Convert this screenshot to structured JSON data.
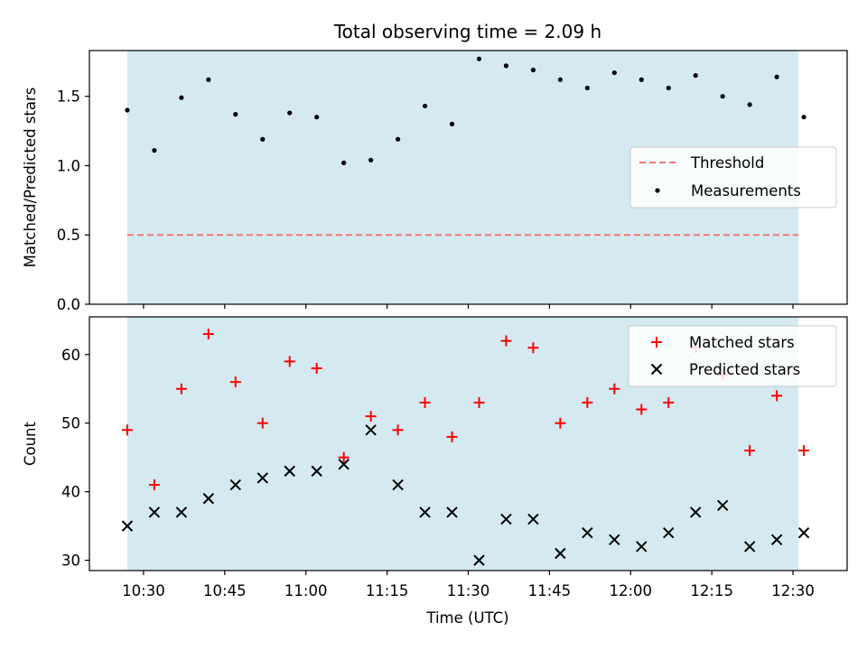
{
  "title": "Total observing time = 2.09 h",
  "colors": {
    "shade": "#d4eaf0",
    "threshold": "#f07878",
    "matched": "#ff0000",
    "predicted": "#000000",
    "measurement": "#000000"
  },
  "chart_data": [
    {
      "type": "scatter",
      "ylabel": "Matched/Predicted stars",
      "ylim": [
        0,
        1.83
      ],
      "yticks": [
        {
          "value": 0.0,
          "label": "0.0"
        },
        {
          "value": 0.5,
          "label": "0.5"
        },
        {
          "value": 1.0,
          "label": "1.0"
        },
        {
          "value": 1.5,
          "label": "1.5"
        }
      ],
      "legend": {
        "position": "right",
        "entries": [
          "Threshold",
          "Measurements"
        ]
      },
      "threshold": {
        "name": "Threshold",
        "y": 0.5,
        "x_range": [
          "10:27",
          "12:31"
        ]
      },
      "series": [
        {
          "name": "Measurements",
          "x": [
            "10:27",
            "10:32",
            "10:37",
            "10:42",
            "10:47",
            "10:52",
            "10:57",
            "11:02",
            "11:07",
            "11:12",
            "11:17",
            "11:22",
            "11:27",
            "11:32",
            "11:37",
            "11:42",
            "11:47",
            "11:52",
            "11:57",
            "12:02",
            "12:07",
            "12:12",
            "12:17",
            "12:22",
            "12:27",
            "12:32"
          ],
          "y": [
            1.4,
            1.11,
            1.49,
            1.62,
            1.37,
            1.19,
            1.38,
            1.35,
            1.02,
            1.04,
            1.19,
            1.43,
            1.3,
            1.77,
            1.72,
            1.69,
            1.62,
            1.56,
            1.67,
            1.62,
            1.56,
            1.65,
            1.5,
            1.44,
            1.64,
            1.35
          ]
        }
      ]
    },
    {
      "type": "scatter",
      "xlabel": "Time (UTC)",
      "ylabel": "Count",
      "ylim": [
        28.5,
        65.5
      ],
      "yticks": [
        {
          "value": 30,
          "label": "30"
        },
        {
          "value": 40,
          "label": "40"
        },
        {
          "value": 50,
          "label": "50"
        },
        {
          "value": 60,
          "label": "60"
        }
      ],
      "legend": {
        "position": "top-right",
        "entries": [
          "Matched stars",
          "Predicted stars"
        ]
      },
      "series": [
        {
          "name": "Matched stars",
          "x": [
            "10:27",
            "10:32",
            "10:37",
            "10:42",
            "10:47",
            "10:52",
            "10:57",
            "11:02",
            "11:07",
            "11:12",
            "11:17",
            "11:22",
            "11:27",
            "11:32",
            "11:37",
            "11:42",
            "11:47",
            "11:52",
            "11:57",
            "12:02",
            "12:07",
            "12:12",
            "12:17",
            "12:22",
            "12:27",
            "12:32"
          ],
          "y": [
            49,
            41,
            55,
            63,
            56,
            50,
            59,
            58,
            45,
            51,
            49,
            53,
            48,
            53,
            62,
            61,
            50,
            53,
            55,
            52,
            53,
            61,
            57,
            46,
            54,
            46
          ]
        },
        {
          "name": "Predicted stars",
          "x": [
            "10:27",
            "10:32",
            "10:37",
            "10:42",
            "10:47",
            "10:52",
            "10:57",
            "11:02",
            "11:07",
            "11:12",
            "11:17",
            "11:22",
            "11:27",
            "11:32",
            "11:37",
            "11:42",
            "11:47",
            "11:52",
            "11:57",
            "12:02",
            "12:07",
            "12:12",
            "12:17",
            "12:22",
            "12:27",
            "12:32"
          ],
          "y": [
            35,
            37,
            37,
            39,
            41,
            42,
            43,
            43,
            44,
            49,
            41,
            37,
            37,
            30,
            36,
            36,
            31,
            34,
            33,
            32,
            34,
            37,
            38,
            32,
            33,
            34
          ]
        }
      ]
    }
  ],
  "x_axis": {
    "xlim": [
      "10:20",
      "12:40"
    ],
    "shade_range": [
      "10:27",
      "12:31"
    ],
    "ticks": [
      {
        "value": "10:30",
        "label": "10:30"
      },
      {
        "value": "10:45",
        "label": "10:45"
      },
      {
        "value": "11:00",
        "label": "11:00"
      },
      {
        "value": "11:15",
        "label": "11:15"
      },
      {
        "value": "11:30",
        "label": "11:30"
      },
      {
        "value": "11:45",
        "label": "11:45"
      },
      {
        "value": "12:00",
        "label": "12:00"
      },
      {
        "value": "12:15",
        "label": "12:15"
      },
      {
        "value": "12:30",
        "label": "12:30"
      }
    ]
  }
}
